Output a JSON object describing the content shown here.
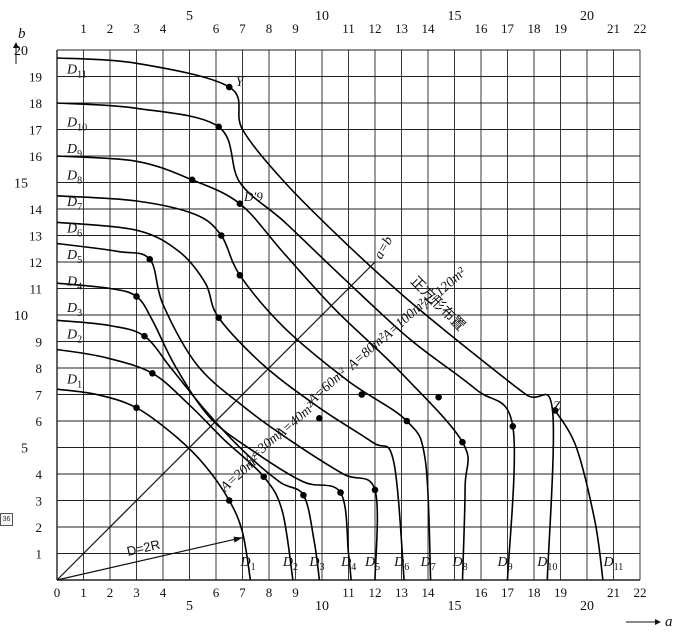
{
  "figure": {
    "axis_b_label": "b",
    "axis_a_label": "a",
    "x_ticks_top": [
      "1",
      "2",
      "3",
      "4",
      "5",
      "6",
      "7",
      "8",
      "9",
      "10",
      "11",
      "12",
      "13",
      "14",
      "15",
      "16",
      "17",
      "18",
      "19",
      "20",
      "21",
      "22"
    ],
    "x_ticks_bottom": [
      "0",
      "1",
      "2",
      "3",
      "4",
      "5",
      "6",
      "7",
      "8",
      "9",
      "10",
      "11",
      "12",
      "13",
      "14",
      "15",
      "16",
      "17",
      "18",
      "19",
      "20",
      "21",
      "22"
    ],
    "y_ticks": [
      "1",
      "2",
      "3",
      "4",
      "5",
      "6",
      "7",
      "8",
      "9",
      "10",
      "11",
      "12",
      "13",
      "14",
      "15",
      "16",
      "17",
      "18",
      "19",
      "20"
    ],
    "side_tag": "36",
    "diagonal_label": "a=b",
    "square_label": "正方形布置",
    "radius_label": "D=2R",
    "point_Y": "Y",
    "point_Z": "Z",
    "point_D9prime": "D′9"
  },
  "curve_labels_left": [
    {
      "id": "D1",
      "main": "D",
      "sub": "1",
      "y": 7.3
    },
    {
      "id": "D2",
      "main": "D",
      "sub": "2",
      "y": 9.0
    },
    {
      "id": "D3",
      "main": "D",
      "sub": "3",
      "y": 10.0
    },
    {
      "id": "D4",
      "main": "D",
      "sub": "4",
      "y": 11.0
    },
    {
      "id": "D5",
      "main": "D",
      "sub": "5",
      "y": 12.0
    },
    {
      "id": "D6",
      "main": "D",
      "sub": "6",
      "y": 13.0
    },
    {
      "id": "D7",
      "main": "D",
      "sub": "7",
      "y": 14.0
    },
    {
      "id": "D8",
      "main": "D",
      "sub": "8",
      "y": 15.0
    },
    {
      "id": "D9",
      "main": "D",
      "sub": "9",
      "y": 16.0
    },
    {
      "id": "D10",
      "main": "D",
      "sub": "10",
      "y": 17.0
    },
    {
      "id": "D11",
      "main": "D",
      "sub": "11",
      "y": 19.0
    }
  ],
  "curve_labels_bottom": [
    {
      "id": "D1",
      "main": "D",
      "sub": "1",
      "x": 7.3
    },
    {
      "id": "D2",
      "main": "D",
      "sub": "2",
      "x": 8.9
    },
    {
      "id": "D3",
      "main": "D",
      "sub": "3",
      "x": 9.9
    },
    {
      "id": "D4",
      "main": "D",
      "sub": "4",
      "x": 11.1
    },
    {
      "id": "D5",
      "main": "D",
      "sub": "5",
      "x": 12.0
    },
    {
      "id": "D6",
      "main": "D",
      "sub": "6",
      "x": 13.1
    },
    {
      "id": "D7",
      "main": "D",
      "sub": "7",
      "x": 14.1
    },
    {
      "id": "D8",
      "main": "D",
      "sub": "8",
      "x": 15.3
    },
    {
      "id": "D9",
      "main": "D",
      "sub": "9",
      "x": 17.0
    },
    {
      "id": "D10",
      "main": "D",
      "sub": "10",
      "x": 18.5
    },
    {
      "id": "D11",
      "main": "D",
      "sub": "11",
      "x": 21.0
    }
  ],
  "area_labels": [
    {
      "text": "A=20m²",
      "x": 7.0,
      "y": 3.9
    },
    {
      "text": "A=30m²",
      "x": 7.9,
      "y": 4.9
    },
    {
      "text": "A=40m²",
      "x": 9.1,
      "y": 5.9
    },
    {
      "text": "A=60m²",
      "x": 10.3,
      "y": 7.2
    },
    {
      "text": "A=80m²",
      "x": 11.8,
      "y": 8.5
    },
    {
      "text": "A=100m²",
      "x": 13.2,
      "y": 9.7
    },
    {
      "text": "A=120m²",
      "x": 14.7,
      "y": 10.9
    }
  ],
  "chart_data": {
    "type": "line",
    "xlim": [
      0,
      22
    ],
    "ylim": [
      0,
      20
    ],
    "grid": true,
    "diagonal": {
      "from": [
        0,
        0
      ],
      "to": [
        12,
        12
      ]
    },
    "radius_vector": {
      "from": [
        0,
        0
      ],
      "to": [
        7,
        1.6
      ]
    },
    "d_curves": [
      {
        "id": "D1",
        "points": [
          [
            0,
            7.2
          ],
          [
            1.5,
            7.0
          ],
          [
            3.0,
            6.5
          ],
          [
            4.5,
            5.4
          ],
          [
            5.6,
            4.3
          ],
          [
            6.5,
            3.0
          ],
          [
            7.0,
            1.8
          ],
          [
            7.3,
            0
          ]
        ]
      },
      {
        "id": "D2",
        "points": [
          [
            0,
            8.7
          ],
          [
            1.8,
            8.4
          ],
          [
            3.6,
            7.8
          ],
          [
            5.0,
            6.6
          ],
          [
            6.3,
            5.3
          ],
          [
            7.8,
            3.9
          ],
          [
            8.5,
            2.6
          ],
          [
            8.9,
            0
          ]
        ]
      },
      {
        "id": "D3",
        "points": [
          [
            0,
            9.8
          ],
          [
            2.0,
            9.6
          ],
          [
            3.3,
            9.2
          ],
          [
            4.3,
            8.0
          ],
          [
            5.6,
            6.4
          ],
          [
            7.0,
            4.9
          ],
          [
            8.4,
            3.7
          ],
          [
            9.3,
            3.2
          ],
          [
            9.7,
            1.5
          ],
          [
            9.9,
            0
          ]
        ]
      },
      {
        "id": "D4",
        "points": [
          [
            0,
            11.2
          ],
          [
            2.0,
            11.0
          ],
          [
            3.0,
            10.7
          ],
          [
            3.6,
            9.8
          ],
          [
            4.5,
            8.0
          ],
          [
            5.8,
            6.1
          ],
          [
            7.5,
            4.8
          ],
          [
            9.3,
            3.7
          ],
          [
            10.7,
            3.3
          ],
          [
            11.0,
            1.0
          ],
          [
            11.1,
            0
          ]
        ]
      },
      {
        "id": "D5",
        "points": [
          [
            0,
            12.7
          ],
          [
            2.3,
            12.4
          ],
          [
            3.5,
            12.1
          ],
          [
            4.0,
            10.4
          ],
          [
            5.3,
            8.1
          ],
          [
            7.1,
            6.5
          ],
          [
            8.9,
            5.2
          ],
          [
            10.8,
            4.0
          ],
          [
            12.0,
            3.4
          ],
          [
            12.0,
            0
          ]
        ]
      },
      {
        "id": "D6",
        "points": [
          [
            0,
            13.5
          ],
          [
            3.0,
            13.2
          ],
          [
            4.6,
            12.4
          ],
          [
            5.6,
            11.2
          ],
          [
            6.1,
            9.9
          ],
          [
            7.8,
            8.1
          ],
          [
            9.9,
            6.5
          ],
          [
            11.9,
            5.2
          ],
          [
            12.7,
            4.5
          ],
          [
            13.1,
            0
          ]
        ]
      },
      {
        "id": "D7",
        "points": [
          [
            0,
            14.5
          ],
          [
            3.0,
            14.3
          ],
          [
            5.2,
            13.8
          ],
          [
            6.2,
            13.0
          ],
          [
            6.9,
            11.5
          ],
          [
            8.6,
            9.5
          ],
          [
            11.0,
            7.5
          ],
          [
            13.2,
            6.0
          ],
          [
            13.9,
            4.5
          ],
          [
            14.1,
            0
          ]
        ]
      },
      {
        "id": "D8",
        "points": [
          [
            0,
            16.0
          ],
          [
            3.0,
            15.8
          ],
          [
            5.1,
            15.1
          ],
          [
            6.9,
            14.2
          ],
          [
            8.5,
            12.4
          ],
          [
            10.5,
            10.2
          ],
          [
            12.9,
            7.9
          ],
          [
            15.3,
            5.2
          ],
          [
            15.4,
            3.5
          ],
          [
            15.3,
            0
          ]
        ]
      },
      {
        "id": "D9",
        "points": [
          [
            0,
            18.0
          ],
          [
            3.0,
            17.8
          ],
          [
            6.1,
            17.1
          ],
          [
            6.9,
            15.0
          ],
          [
            8.6,
            13.5
          ],
          [
            10.8,
            11.4
          ],
          [
            13.3,
            9.1
          ],
          [
            15.8,
            7.2
          ],
          [
            17.2,
            5.8
          ],
          [
            17.0,
            0
          ]
        ]
      },
      {
        "id": "D10",
        "points": [
          [
            0,
            19.7
          ],
          [
            3.0,
            19.5
          ],
          [
            6.5,
            18.6
          ],
          [
            7.0,
            17.0
          ],
          [
            8.6,
            15.0
          ],
          [
            10.8,
            12.8
          ],
          [
            13.1,
            10.7
          ],
          [
            15.4,
            8.8
          ],
          [
            17.7,
            7.0
          ],
          [
            18.7,
            6.4
          ],
          [
            18.5,
            0
          ]
        ]
      },
      {
        "id": "D11",
        "points": [
          [
            18.8,
            6.4
          ],
          [
            19.6,
            5.0
          ],
          [
            20.3,
            2.2
          ],
          [
            20.6,
            0
          ]
        ]
      }
    ],
    "marked_points": [
      [
        3.0,
        6.5
      ],
      [
        3.6,
        7.8
      ],
      [
        3.3,
        9.2
      ],
      [
        3.0,
        10.7
      ],
      [
        3.5,
        12.1
      ],
      [
        5.1,
        15.1
      ],
      [
        6.1,
        17.1
      ],
      [
        6.5,
        18.6
      ],
      [
        6.9,
        14.2
      ],
      [
        6.2,
        13.0
      ],
      [
        6.9,
        11.5
      ],
      [
        6.1,
        9.9
      ],
      [
        6.5,
        3.0
      ],
      [
        7.8,
        3.9
      ],
      [
        9.3,
        3.2
      ],
      [
        10.7,
        3.3
      ],
      [
        12.0,
        3.4
      ],
      [
        9.9,
        6.1
      ],
      [
        11.5,
        7.0
      ],
      [
        13.2,
        6.0
      ],
      [
        15.3,
        5.2
      ],
      [
        17.2,
        5.8
      ],
      [
        18.8,
        6.4
      ],
      [
        14.4,
        6.9
      ]
    ]
  }
}
